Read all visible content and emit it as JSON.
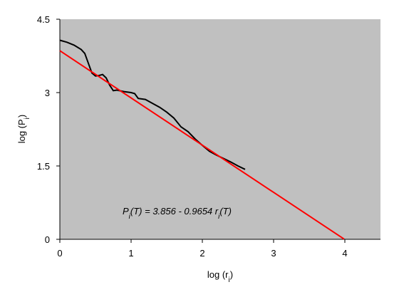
{
  "chart_data": {
    "type": "line",
    "xlabel": [
      "log (r",
      "i",
      ")"
    ],
    "ylabel": [
      "log (P",
      "i",
      ")"
    ],
    "annotation": [
      "P",
      "i",
      "(T)  = 3.856 - 0.9654 r",
      "i",
      "(T)"
    ],
    "xlim": [
      0,
      4.5
    ],
    "xticks": [
      0,
      1,
      2,
      3,
      4
    ],
    "ylim": [
      0,
      4.5
    ],
    "yticks": [
      0,
      1.5,
      3,
      4.5
    ],
    "background": "#c0c0c0",
    "series": [
      {
        "color": "#000000",
        "x": [
          0,
          0.1,
          0.2,
          0.3,
          0.35,
          0.4,
          0.45,
          0.5,
          0.55,
          0.6,
          0.65,
          0.7,
          0.75,
          0.8,
          0.9,
          1.0,
          1.05,
          1.1,
          1.2,
          1.3,
          1.4,
          1.5,
          1.6,
          1.7,
          1.8,
          1.9,
          2.0,
          2.1,
          2.2,
          2.3,
          2.4,
          2.5,
          2.6
        ],
        "values": [
          4.07,
          4.03,
          3.97,
          3.88,
          3.8,
          3.6,
          3.4,
          3.34,
          3.35,
          3.37,
          3.3,
          3.15,
          3.04,
          3.05,
          3.02,
          3.0,
          2.98,
          2.88,
          2.86,
          2.78,
          2.7,
          2.6,
          2.48,
          2.3,
          2.2,
          2.05,
          1.92,
          1.8,
          1.72,
          1.65,
          1.58,
          1.5,
          1.43
        ]
      },
      {
        "color": "#ff0000",
        "x": [
          0,
          3.99
        ],
        "values": [
          3.856,
          0.004
        ]
      }
    ]
  }
}
